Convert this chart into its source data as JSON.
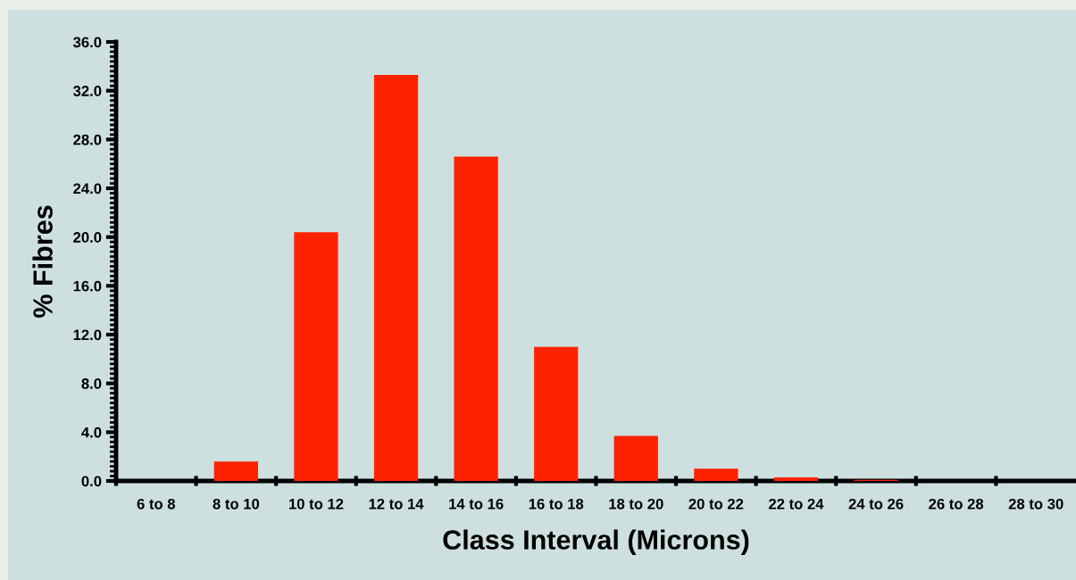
{
  "chart_data": {
    "type": "bar",
    "xlabel": "Class Interval (Microns)",
    "ylabel": "% Fibres",
    "categories": [
      "6 to 8",
      "8 to 10",
      "10 to 12",
      "12 to 14",
      "14 to 16",
      "16 to 18",
      "18 to 20",
      "20 to 22",
      "22 to 24",
      "24 to 26",
      "26 to 28",
      "28 to 30"
    ],
    "values": [
      0,
      1.6,
      20.4,
      33.3,
      26.6,
      11.0,
      3.7,
      1.0,
      0.3,
      0.1,
      0,
      0
    ],
    "color": "#ff2200",
    "ylim": [
      0,
      36
    ],
    "yticks": [
      {
        "value": 0,
        "label": "0.0"
      },
      {
        "value": 4,
        "label": "4.0"
      },
      {
        "value": 8,
        "label": "8.0"
      },
      {
        "value": 12,
        "label": "12.0"
      },
      {
        "value": 16,
        "label": "16.0"
      },
      {
        "value": 20,
        "label": "20.0"
      },
      {
        "value": 24,
        "label": "24.0"
      },
      {
        "value": 28,
        "label": "28.0"
      },
      {
        "value": 32,
        "label": "32.0"
      },
      {
        "value": 36,
        "label": "36.0"
      }
    ],
    "grid": false
  }
}
